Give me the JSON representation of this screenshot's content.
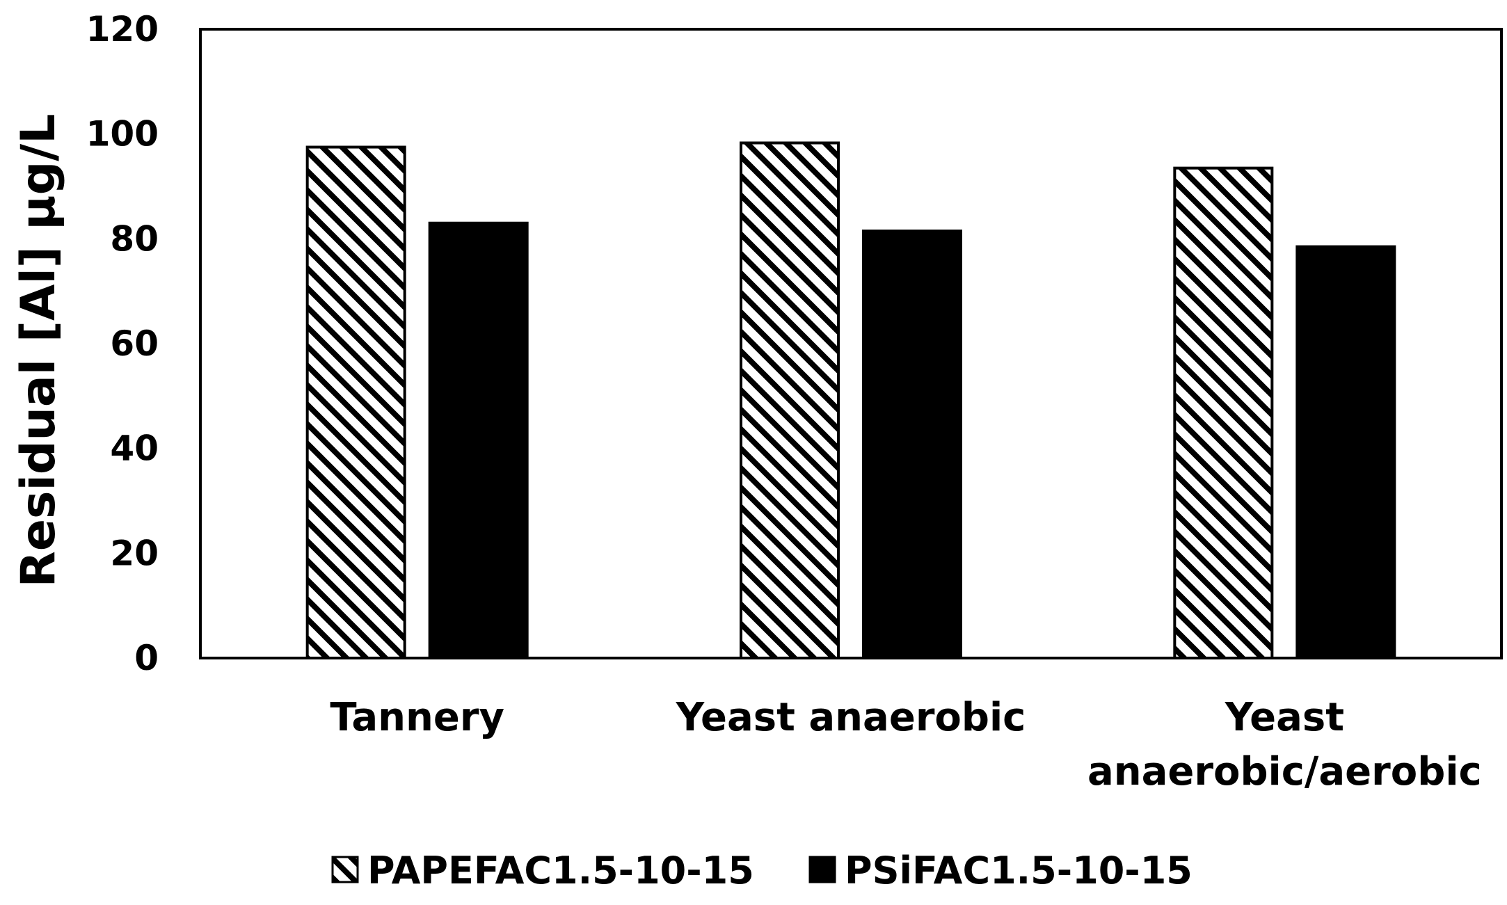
{
  "chart_data": {
    "type": "bar",
    "title": "",
    "xlabel": "",
    "ylabel": "Residual [Al] µg/L",
    "ylim": [
      0,
      120
    ],
    "yticks": [
      0,
      20,
      40,
      60,
      80,
      100,
      120
    ],
    "ytick_labels": [
      "0",
      "20",
      "40",
      "60",
      "80",
      "100",
      "120"
    ],
    "grid": false,
    "legend_position": "bottom",
    "categories": [
      {
        "id": "tannery",
        "lines": [
          "Tannery"
        ]
      },
      {
        "id": "yeast-anaerobic",
        "lines": [
          "Yeast anaerobic"
        ]
      },
      {
        "id": "yeast-anaerobic-aerobic",
        "lines": [
          "Yeast",
          "anaerobic/aerobic"
        ]
      }
    ],
    "series": [
      {
        "id": "papefac",
        "name": "PAPEFAC1.5-10-15",
        "pattern": "diagonal-hatch",
        "color": "#000000",
        "values": [
          97.5,
          98.3,
          93.5
        ]
      },
      {
        "id": "psifac",
        "name": "PSiFAC1.5-10-15",
        "pattern": "solid",
        "color": "#000000",
        "values": [
          83,
          81.5,
          78.5
        ]
      }
    ]
  }
}
